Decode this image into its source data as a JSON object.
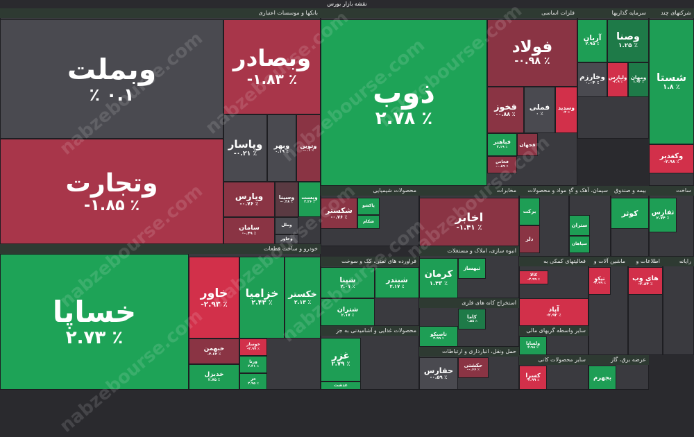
{
  "title": "نقشه بازار بورس",
  "watermark": "nabzebourse.com",
  "sectors": [
    {
      "name": "بانکها و موسسات اعتباری",
      "tiles": [
        {
          "name": "وبملت",
          "change": "٪ ۰.۱",
          "color": "#4a4a50"
        },
        {
          "name": "وتجارت",
          "change": "-۱.۸۵ ٪",
          "color": "#a8364a"
        },
        {
          "name": "وبصادر",
          "change": "-۱.۸۳ ٪",
          "color": "#a8364a"
        },
        {
          "name": "وپاسار",
          "change": "-۰.۲۱ ٪",
          "color": "#4a4a50"
        },
        {
          "name": "وبهر",
          "change": "۰.۱۹ ٪",
          "color": "#4a4a50"
        },
        {
          "name": "وتوین",
          "change": "-۰.۱ ٪",
          "color": "#8a3444"
        },
        {
          "name": "وپارس",
          "change": "-۰.۷۶ ٪",
          "color": "#8a3444"
        },
        {
          "name": "سامان",
          "change": "-۰.۴۹ ٪",
          "color": "#8a3444"
        },
        {
          "name": "وسینا",
          "change": "-۰.۳۸ ٪",
          "color": "#5a3a42"
        },
        {
          "name": "وبست",
          "change": "۲.۲۶ ٪",
          "color": "#1e9e55"
        },
        {
          "name": "وملل",
          "change": "",
          "color": "#4a4a50"
        },
        {
          "name": "وخاور",
          "change": "",
          "color": "#4a4a50"
        }
      ]
    },
    {
      "name": "خودرو و ساخت قطعات",
      "tiles": [
        {
          "name": "خساپا",
          "change": "۲.۷۳ ٪",
          "color": "#1ea357"
        },
        {
          "name": "خاور",
          "change": "-۲.۹۳ ٪",
          "color": "#d2304a"
        },
        {
          "name": "خزامیا",
          "change": "۲.۴۳ ٪",
          "color": "#1e9e55"
        },
        {
          "name": "خکستر",
          "change": "۲.۱۳ ٪",
          "color": "#1e9e55"
        },
        {
          "name": "خبهمن",
          "change": "-۴.۶۲ ٪",
          "color": "#8a3444"
        },
        {
          "name": "خدیزل",
          "change": "۲.۷۵ ٪",
          "color": "#1e9e55"
        },
        {
          "name": "خوساز",
          "change": "-۲.۹۷ ٪",
          "color": "#d2304a"
        },
        {
          "name": "ورنا",
          "change": "۲.۴۱ ٪",
          "color": "#1e9e55"
        },
        {
          "name": "خز",
          "change": "۲.۹۵ ٪",
          "color": "#1e9e55"
        }
      ]
    },
    {
      "name": "فلزات اساسی",
      "tiles": [
        {
          "name": "ذوب",
          "change": "۲.۷۸ ٪",
          "color": "#1ea357"
        },
        {
          "name": "فولاد",
          "change": "-۰.۹۸ ٪",
          "color": "#8a3444"
        },
        {
          "name": "فخوز",
          "change": "-۰.۸۸ ٪",
          "color": "#8a3444"
        },
        {
          "name": "فملی",
          "change": "۰ ٪",
          "color": "#4a4a50"
        },
        {
          "name": "وسدید",
          "change": "-۳ ٪",
          "color": "#d2304a"
        },
        {
          "name": "فباهنر",
          "change": "۲.۱۹ ٪",
          "color": "#1e9e55"
        },
        {
          "name": "فخاس",
          "change": "-۰.۸۹ ٪",
          "color": "#8a3444"
        },
        {
          "name": "فجهان",
          "change": "",
          "color": "#8a3444"
        }
      ]
    },
    {
      "name": "سرمایه گذاریها",
      "tiles": [
        {
          "name": "آریان",
          "change": "۲.۹۵ ٪",
          "color": "#1e9e55"
        },
        {
          "name": "وصنا",
          "change": "۱.۲۵ ٪",
          "color": "#1e7a48"
        },
        {
          "name": "وخارزم",
          "change": "۰.۰۴ ٪",
          "color": "#4a4a50"
        },
        {
          "name": "ولپارس",
          "change": "-۲.۹ ٪",
          "color": "#d2304a"
        },
        {
          "name": "ومهان",
          "change": "۱.۹۲ ٪",
          "color": "#1e7a48"
        }
      ]
    },
    {
      "name": "شرکتهای چند",
      "tiles": [
        {
          "name": "شستا",
          "change": "۱.۸ ٪",
          "color": "#1e9e55"
        },
        {
          "name": "وکغدیر",
          "change": "-۲.۹۸ ٪",
          "color": "#d2304a"
        }
      ]
    },
    {
      "name": "محصولات شیمیایی",
      "tiles": [
        {
          "name": "شکستر",
          "change": "-۰.۷۶ ٪",
          "color": "#8a3444"
        },
        {
          "name": "پاکشو",
          "change": "",
          "color": "#1e9e55"
        },
        {
          "name": "شکام",
          "change": "",
          "color": "#1e9e55"
        }
      ]
    },
    {
      "name": "مخابرات",
      "tiles": [
        {
          "name": "اخابر",
          "change": "-۱.۴۱ ٪",
          "color": "#8a3444"
        }
      ]
    },
    {
      "name": "مواد و محصولات",
      "tiles": [
        {
          "name": "برکت",
          "change": "",
          "color": "#1e9e55"
        },
        {
          "name": "دلر",
          "change": "",
          "color": "#8a3444"
        }
      ]
    },
    {
      "name": "سیمان، آهک و گچ",
      "tiles": [
        {
          "name": "ستران",
          "change": "",
          "color": "#1e9e55"
        },
        {
          "name": "سپاهان",
          "change": "",
          "color": "#1e9e55"
        }
      ]
    },
    {
      "name": "بیمه و صندوق",
      "tiles": [
        {
          "name": "کوثر",
          "change": "",
          "color": "#1e9e55"
        }
      ]
    },
    {
      "name": "ساخت",
      "tiles": [
        {
          "name": "ثفارس",
          "change": "۲.۷۴ ٪",
          "color": "#1e9e55"
        }
      ]
    },
    {
      "name": "فراورده های نفتی، کک و سوخت",
      "tiles": [
        {
          "name": "شپنا",
          "change": "۲.۰۱ ٪",
          "color": "#1e9e55"
        },
        {
          "name": "شبندر",
          "change": "۲.۱۷ ٪",
          "color": "#1e9e55"
        },
        {
          "name": "شتران",
          "change": "۲.۱۷ ٪",
          "color": "#1e9e55"
        }
      ]
    },
    {
      "name": "انبوه سازی، املاک و مستغلات",
      "tiles": [
        {
          "name": "کرمان",
          "change": "۱.۴۳ ٪",
          "color": "#1e9e55"
        },
        {
          "name": "ثبهساز",
          "change": "",
          "color": "#1e9e55"
        }
      ]
    },
    {
      "name": "استخراج کانه های فلزی",
      "tiles": [
        {
          "name": "کاما",
          "change": "۰.۵۸ ٪",
          "color": "#1e7a48"
        },
        {
          "name": "تاصیکو",
          "change": "۲.۹۹ ٪",
          "color": "#1e9e55"
        }
      ]
    },
    {
      "name": "محصولات غذایی و آشامیدنی به جز",
      "tiles": [
        {
          "name": "غزر",
          "change": "۲.۷۹ ٪",
          "color": "#1e9e55"
        },
        {
          "name": "غدشت",
          "change": "",
          "color": "#1e9e55"
        }
      ]
    },
    {
      "name": "حمل ونقل، انبارداری و ارتباطات",
      "tiles": [
        {
          "name": "حفارس",
          "change": "-۰.۵۹ ٪",
          "color": "#4a4a50"
        },
        {
          "name": "حکشتی",
          "change": "-۰.۶۶ ٪",
          "color": "#8a3444"
        }
      ]
    },
    {
      "name": "فعالیتهای کمکی به",
      "tiles": [
        {
          "name": "کالا",
          "change": "-۲.۹۹ ٪",
          "color": "#d2304a"
        },
        {
          "name": "آپاد",
          "change": "-۲.۹۲ ٪",
          "color": "#d2304a"
        }
      ]
    },
    {
      "name": "ماشین آلات و",
      "tiles": [
        {
          "name": "تیکو",
          "change": "-۲.۹۹ ٪",
          "color": "#d2304a"
        }
      ]
    },
    {
      "name": "اطلاعات و",
      "tiles": [
        {
          "name": "های وب",
          "change": "-۲.۸۴ ٪",
          "color": "#d2304a"
        }
      ]
    },
    {
      "name": "رایانه",
      "tiles": []
    },
    {
      "name": "سایر واسطه گریهای مالی",
      "tiles": [
        {
          "name": "ولساپا",
          "change": "۲.۹۸ ٪",
          "color": "#1e9e55"
        }
      ]
    },
    {
      "name": "سایر محصولات کانی",
      "tiles": [
        {
          "name": "کسرا",
          "change": "-۲.۹۹ ٪",
          "color": "#d2304a"
        }
      ]
    },
    {
      "name": "عرضه برق، گاز",
      "tiles": [
        {
          "name": "بجهرم",
          "change": "",
          "color": "#1e9e55"
        }
      ]
    }
  ]
}
